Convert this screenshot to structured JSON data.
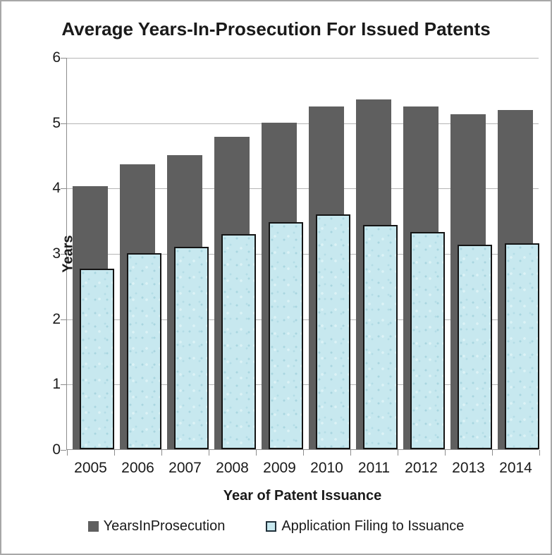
{
  "chart_data": {
    "type": "bar",
    "title": "Average Years-In-Prosecution For Issued Patents",
    "xlabel": "Year of Patent Issuance",
    "ylabel": "Years",
    "ylim": [
      0,
      6
    ],
    "yticks": [
      "0",
      "1",
      "2",
      "3",
      "4",
      "5",
      "6"
    ],
    "grid": true,
    "legend_position": "bottom",
    "categories": [
      "2005",
      "2006",
      "2007",
      "2008",
      "2009",
      "2010",
      "2011",
      "2012",
      "2013",
      "2014"
    ],
    "series": [
      {
        "name": "YearsInProsecution",
        "color": "#5f5f5f",
        "values": [
          4.03,
          4.36,
          4.5,
          4.78,
          5.0,
          5.25,
          5.35,
          5.24,
          5.13,
          5.19
        ]
      },
      {
        "name": "Application Filing to Issuance",
        "color": "#c7e8ef",
        "values": [
          2.76,
          3.0,
          3.1,
          3.29,
          3.47,
          3.59,
          3.43,
          3.32,
          3.13,
          3.15
        ]
      }
    ]
  }
}
